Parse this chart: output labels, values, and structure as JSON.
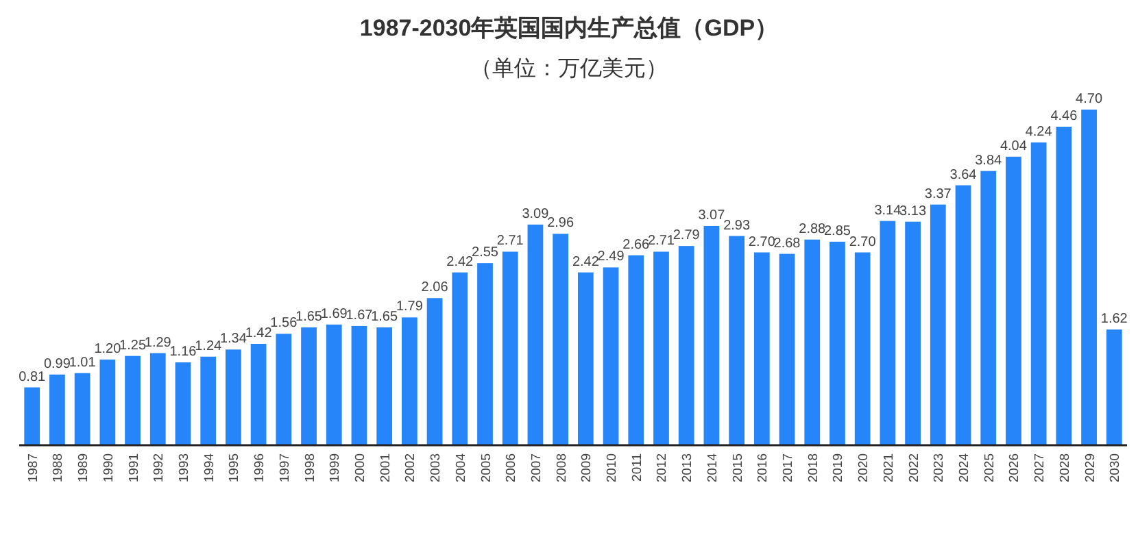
{
  "chart_data": {
    "type": "bar",
    "title": "1987-2030年英国国内生产总值（GDP）",
    "subtitle": "（单位：万亿美元）",
    "categories": [
      "1987",
      "1988",
      "1989",
      "1990",
      "1991",
      "1992",
      "1993",
      "1994",
      "1995",
      "1996",
      "1997",
      "1998",
      "1999",
      "2000",
      "2001",
      "2002",
      "2003",
      "2004",
      "2005",
      "2006",
      "2007",
      "2008",
      "2009",
      "2010",
      "2011",
      "2012",
      "2013",
      "2014",
      "2015",
      "2016",
      "2017",
      "2018",
      "2019",
      "2020",
      "2021",
      "2022",
      "2023",
      "2024",
      "2025",
      "2026",
      "2027",
      "2028",
      "2029",
      "2030"
    ],
    "values": [
      0.81,
      0.99,
      1.01,
      1.2,
      1.25,
      1.29,
      1.16,
      1.24,
      1.34,
      1.42,
      1.56,
      1.65,
      1.69,
      1.67,
      1.65,
      1.79,
      2.06,
      2.42,
      2.55,
      2.71,
      3.09,
      2.96,
      2.42,
      2.49,
      2.66,
      2.71,
      2.79,
      3.07,
      2.93,
      2.7,
      2.68,
      2.88,
      2.85,
      2.7,
      3.14,
      3.13,
      3.37,
      3.64,
      3.84,
      4.04,
      4.24,
      4.46,
      4.7,
      1.62
    ],
    "value_labels": [
      "0.81",
      "0.99",
      "1.01",
      "1.20",
      "1.25",
      "1.29",
      "1.16",
      "1.24",
      "1.34",
      "1.42",
      "1.56",
      "1.65",
      "1.69",
      "1.67",
      "1.65",
      "1.79",
      "2.06",
      "2.42",
      "2.55",
      "2.71",
      "3.09",
      "2.96",
      "2.42",
      "2.49",
      "2.66",
      "2.71",
      "2.79",
      "3.07",
      "2.93",
      "2.70",
      "2.68",
      "2.88",
      "2.85",
      "2.70",
      "3.14",
      "3.13",
      "3.37",
      "3.64",
      "3.84",
      "4.04",
      "4.24",
      "4.46",
      "4.70",
      "1.62"
    ],
    "color": "#2685f8"
  }
}
